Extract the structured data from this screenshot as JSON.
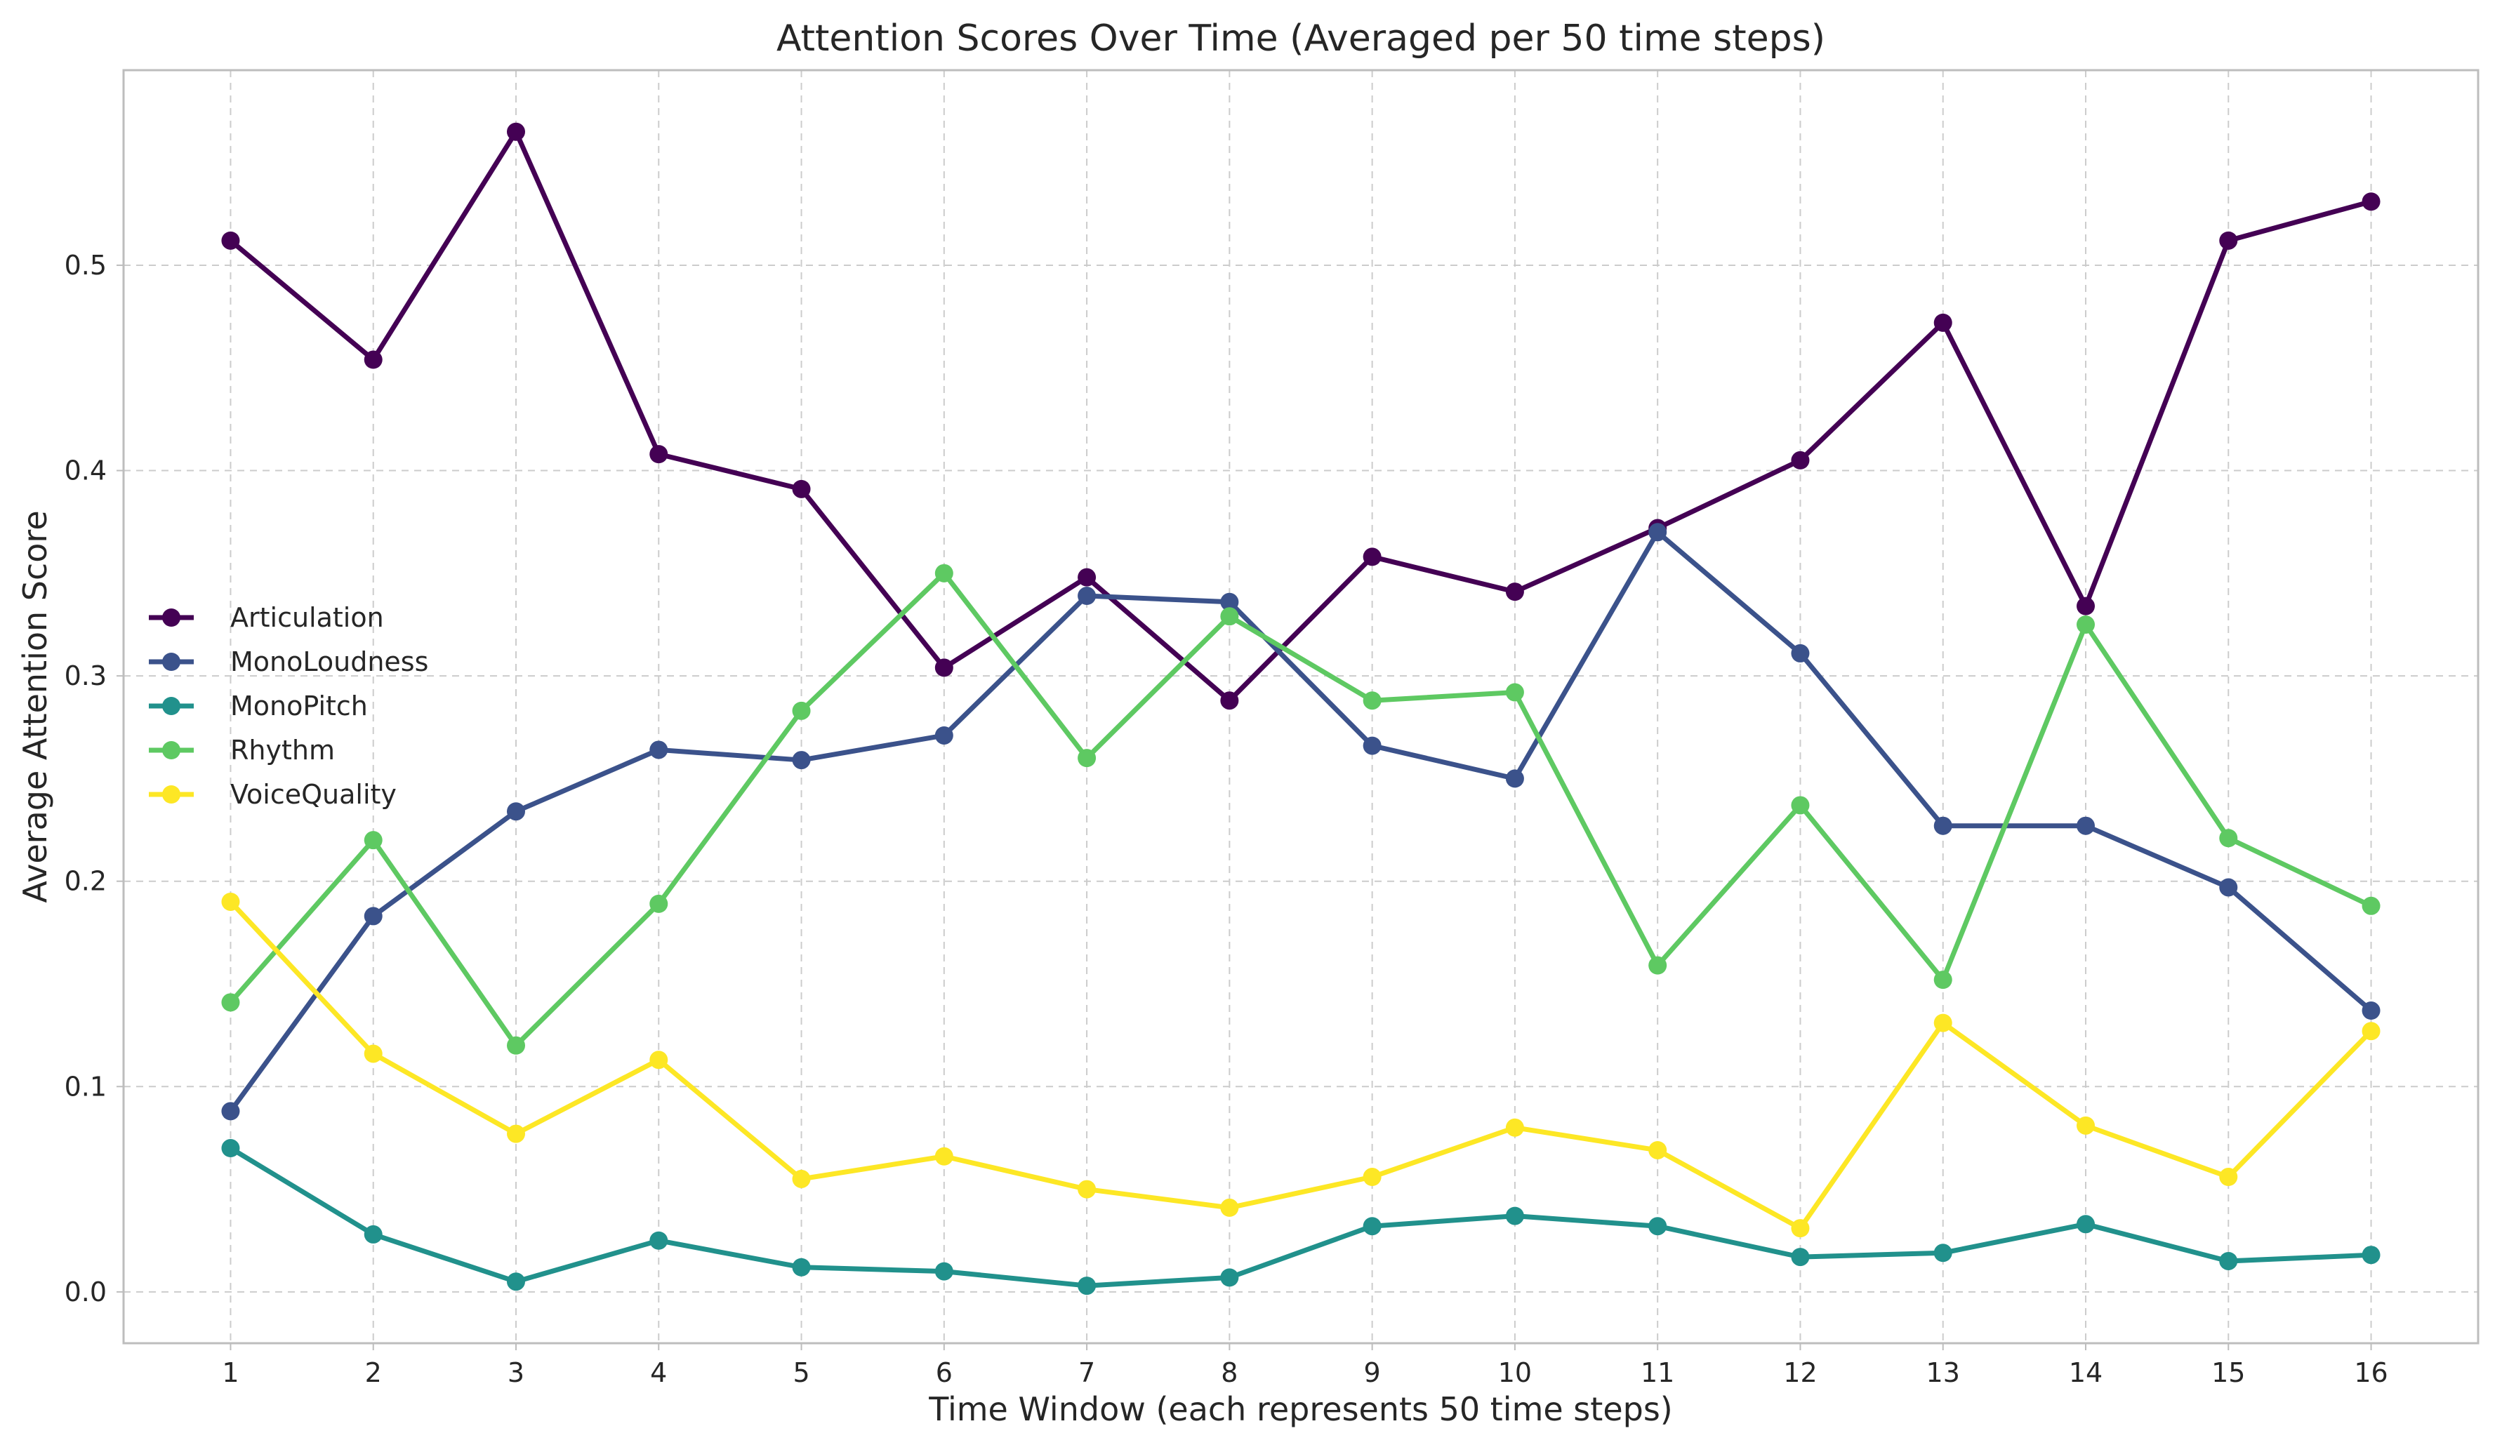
{
  "chart_data": {
    "type": "line",
    "title": "Attention Scores Over Time (Averaged per 50 time steps)",
    "xlabel": "Time Window (each represents 50 time steps)",
    "ylabel": "Average Attention Score",
    "categories": [
      "1",
      "2",
      "3",
      "4",
      "5",
      "6",
      "7",
      "8",
      "9",
      "10",
      "11",
      "12",
      "13",
      "14",
      "15",
      "16"
    ],
    "x": [
      1,
      2,
      3,
      4,
      5,
      6,
      7,
      8,
      9,
      10,
      11,
      12,
      13,
      14,
      15,
      16
    ],
    "xlim": [
      0.25,
      16.75
    ],
    "ylim": [
      -0.025,
      0.595
    ],
    "yticks": [
      0.0,
      0.1,
      0.2,
      0.3,
      0.4,
      0.5
    ],
    "ytick_labels": [
      "0.0",
      "0.1",
      "0.2",
      "0.3",
      "0.4",
      "0.5"
    ],
    "grid": true,
    "legend_position": "center-left",
    "series": [
      {
        "name": "Articulation",
        "color": "#440154",
        "values": [
          0.512,
          0.454,
          0.565,
          0.408,
          0.391,
          0.304,
          0.348,
          0.288,
          0.358,
          0.341,
          0.372,
          0.405,
          0.472,
          0.334,
          0.512,
          0.531
        ]
      },
      {
        "name": "MonoLoudness",
        "color": "#3b528b",
        "values": [
          0.088,
          0.183,
          0.234,
          0.264,
          0.259,
          0.271,
          0.339,
          0.336,
          0.266,
          0.25,
          0.37,
          0.311,
          0.227,
          0.227,
          0.197,
          0.137
        ]
      },
      {
        "name": "MonoPitch",
        "color": "#21918c",
        "values": [
          0.07,
          0.028,
          0.005,
          0.025,
          0.012,
          0.01,
          0.003,
          0.007,
          0.032,
          0.037,
          0.032,
          0.017,
          0.019,
          0.033,
          0.015,
          0.018
        ]
      },
      {
        "name": "Rhythm",
        "color": "#5ec962",
        "values": [
          0.141,
          0.22,
          0.12,
          0.189,
          0.283,
          0.35,
          0.26,
          0.329,
          0.288,
          0.292,
          0.159,
          0.237,
          0.152,
          0.325,
          0.221,
          0.188
        ]
      },
      {
        "name": "VoiceQuality",
        "color": "#fde725",
        "values": [
          0.19,
          0.116,
          0.077,
          0.113,
          0.055,
          0.066,
          0.05,
          0.041,
          0.056,
          0.08,
          0.069,
          0.031,
          0.131,
          0.081,
          0.056,
          0.127
        ]
      }
    ]
  }
}
